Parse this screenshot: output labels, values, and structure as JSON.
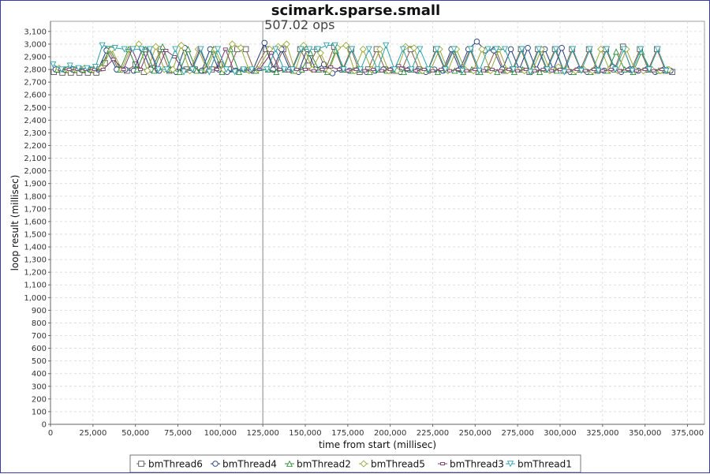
{
  "chart_data": {
    "type": "line",
    "title": "scimark.sparse.small",
    "annotation": "507.02 ops",
    "annotation_x": 125000,
    "xlabel": "time from start (millisec)",
    "ylabel": "loop result (millisec)",
    "xlim": [
      0,
      385000
    ],
    "ylim": [
      0,
      3180
    ],
    "x_ticks": [
      0,
      25000,
      50000,
      75000,
      100000,
      125000,
      150000,
      175000,
      200000,
      225000,
      250000,
      275000,
      300000,
      325000,
      350000,
      375000
    ],
    "x_tick_labels": [
      "0",
      "25,000",
      "50,000",
      "75,000",
      "100,000",
      "125,000",
      "150,000",
      "175,000",
      "200,000",
      "225,000",
      "250,000",
      "275,000",
      "300,000",
      "325,000",
      "350,000",
      "375,000"
    ],
    "y_ticks": [
      0,
      100,
      200,
      300,
      400,
      500,
      600,
      700,
      800,
      900,
      1000,
      1100,
      1200,
      1300,
      1400,
      1500,
      1600,
      1700,
      1800,
      1900,
      2000,
      2100,
      2200,
      2300,
      2400,
      2500,
      2600,
      2700,
      2800,
      2900,
      3000,
      3100
    ],
    "y_tick_labels": [
      "0",
      "100",
      "200",
      "300",
      "400",
      "500",
      "600",
      "700",
      "800",
      "900",
      "1,000",
      "1,100",
      "1,200",
      "1,300",
      "1,400",
      "1,500",
      "1,600",
      "1,700",
      "1,800",
      "1,900",
      "2,000",
      "2,100",
      "2,200",
      "2,300",
      "2,400",
      "2,500",
      "2,600",
      "2,700",
      "2,800",
      "2,900",
      "3,000",
      "3,100"
    ],
    "grid": true,
    "legend_position": "bottom",
    "series": [
      {
        "name": "bmThread6",
        "color": "#8b5a3c",
        "marker": "square",
        "x": [
          2000,
          7000,
          12000,
          17000,
          22000,
          27000,
          32000,
          34000,
          40000,
          45000,
          50000,
          55000,
          60000,
          65000,
          70000,
          75000,
          80000,
          85000,
          90000,
          95000,
          100000,
          105000,
          110000,
          115000,
          120000,
          127000,
          132000,
          137000,
          142000,
          147000,
          152000,
          157000,
          162000,
          167000,
          172000,
          177000,
          182000,
          187000,
          192000,
          197000,
          202000,
          207000,
          212000,
          217000,
          222000,
          227000,
          232000,
          237000,
          242000,
          247000,
          252000,
          257000,
          262000,
          267000,
          272000,
          277000,
          282000,
          287000,
          292000,
          297000,
          302000,
          307000,
          312000,
          317000,
          322000,
          327000,
          332000,
          337000,
          342000,
          347000,
          352000,
          357000,
          362000,
          366000
        ],
        "y": [
          2780,
          2775,
          2775,
          2775,
          2775,
          2775,
          2850,
          2960,
          2800,
          2790,
          2840,
          2780,
          2810,
          2960,
          2790,
          2780,
          2800,
          2800,
          2790,
          2800,
          2840,
          2800,
          2960,
          2960,
          2790,
          2960,
          2800,
          2960,
          2800,
          2960,
          2830,
          2960,
          2800,
          2980,
          2800,
          2960,
          2780,
          2800,
          2960,
          2800,
          2790,
          2800,
          2960,
          2800,
          2790,
          2960,
          2800,
          2960,
          2800,
          2960,
          2780,
          2800,
          2960,
          2790,
          2800,
          2960,
          2780,
          2960,
          2800,
          2960,
          2790,
          2960,
          2800,
          2960,
          2790,
          2960,
          2800,
          2980,
          2800,
          2960,
          2800,
          2960,
          2790,
          2780
        ]
      },
      {
        "name": "bmThread4",
        "color": "#1f3a7a",
        "marker": "circle",
        "x": [
          3000,
          8000,
          13000,
          18000,
          23000,
          28000,
          33000,
          39000,
          44000,
          49000,
          54000,
          59000,
          64000,
          69000,
          74000,
          79000,
          84000,
          89000,
          94000,
          99000,
          104000,
          109000,
          114000,
          119000,
          126000,
          131000,
          136000,
          141000,
          146000,
          151000,
          156000,
          161000,
          166000,
          171000,
          176000,
          181000,
          186000,
          191000,
          196000,
          201000,
          206000,
          211000,
          216000,
          221000,
          226000,
          231000,
          236000,
          241000,
          246000,
          251000,
          256000,
          261000,
          266000,
          271000,
          276000,
          281000,
          286000,
          291000,
          296000,
          301000,
          306000,
          311000,
          316000,
          321000,
          326000,
          331000,
          336000,
          341000,
          346000,
          351000,
          356000,
          361000,
          365000
        ],
        "y": [
          2800,
          2800,
          2800,
          2800,
          2800,
          2800,
          2950,
          2800,
          2800,
          2790,
          2960,
          2800,
          2790,
          2800,
          2780,
          2970,
          2800,
          2790,
          2960,
          2800,
          2780,
          2790,
          2800,
          2790,
          3010,
          2800,
          2960,
          2800,
          2780,
          2960,
          2800,
          2840,
          2770,
          2800,
          2790,
          2800,
          2780,
          2790,
          2800,
          2800,
          2780,
          2800,
          2790,
          2780,
          2800,
          2790,
          2960,
          2800,
          2960,
          3020,
          2950,
          2950,
          2800,
          2960,
          2800,
          2970,
          2800,
          2960,
          2800,
          2970,
          2780,
          2800,
          2780,
          2800,
          2790,
          2820,
          2780,
          2800,
          2790,
          2800,
          2780,
          2800,
          2790
        ]
      },
      {
        "name": "bmThread2",
        "color": "#2e8b3a",
        "marker": "triangle-up",
        "x": [
          4000,
          9000,
          14000,
          19000,
          24000,
          29000,
          35000,
          41000,
          46000,
          51000,
          56000,
          61000,
          66000,
          71000,
          76000,
          81000,
          86000,
          91000,
          96000,
          101000,
          106000,
          111000,
          116000,
          121000,
          128000,
          133000,
          138000,
          143000,
          148000,
          153000,
          158000,
          163000,
          168000,
          173000,
          178000,
          183000,
          188000,
          193000,
          198000,
          203000,
          208000,
          213000,
          218000,
          223000,
          228000,
          233000,
          238000,
          243000,
          248000,
          253000,
          258000,
          263000,
          268000,
          273000,
          278000,
          283000,
          288000,
          293000,
          298000,
          303000,
          308000,
          313000,
          318000,
          323000,
          328000,
          333000,
          338000,
          343000,
          348000,
          353000,
          358000,
          363000
        ],
        "y": [
          2800,
          2800,
          2800,
          2800,
          2800,
          2810,
          2960,
          2800,
          2960,
          2800,
          2960,
          2790,
          2980,
          2800,
          2780,
          2960,
          2790,
          2800,
          2960,
          2780,
          2960,
          2780,
          2800,
          2790,
          2800,
          2780,
          2800,
          2790,
          2800,
          2930,
          2800,
          2780,
          2950,
          2800,
          2790,
          2800,
          2780,
          2800,
          2790,
          2800,
          2780,
          2800,
          2790,
          2800,
          2780,
          2800,
          2790,
          2780,
          2800,
          2780,
          2800,
          2780,
          2800,
          2780,
          2800,
          2790,
          2780,
          2800,
          2790,
          2800,
          2780,
          2800,
          2780,
          2800,
          2790,
          2940,
          2800,
          2780,
          2940,
          2800,
          2790,
          2800
        ]
      },
      {
        "name": "bmThread5",
        "color": "#9aa83a",
        "marker": "diamond",
        "x": [
          5000,
          10000,
          15000,
          20000,
          25000,
          30000,
          36000,
          42000,
          47000,
          52000,
          57000,
          62000,
          67000,
          72000,
          77000,
          82000,
          87000,
          92000,
          97000,
          102000,
          107000,
          112000,
          117000,
          122000,
          129000,
          134000,
          139000,
          144000,
          149000,
          154000,
          159000,
          164000,
          169000,
          174000,
          179000,
          184000,
          189000,
          194000,
          199000,
          204000,
          209000,
          214000,
          219000,
          224000,
          229000,
          234000,
          239000,
          244000,
          249000,
          254000,
          259000,
          264000,
          269000,
          274000,
          279000,
          284000,
          289000,
          294000,
          299000,
          304000,
          309000,
          314000,
          319000,
          324000,
          329000,
          334000,
          339000,
          344000,
          349000,
          354000,
          359000,
          364000
        ],
        "y": [
          2810,
          2800,
          2800,
          2810,
          2800,
          2810,
          2960,
          2800,
          2960,
          3000,
          2790,
          2980,
          2800,
          2800,
          2990,
          2790,
          2960,
          2800,
          2960,
          2800,
          3000,
          2970,
          2790,
          2800,
          2960,
          2980,
          3000,
          2790,
          2990,
          2800,
          2930,
          2790,
          2970,
          2990,
          2790,
          2960,
          2800,
          2960,
          2790,
          2790,
          2980,
          2970,
          2790,
          2800,
          2960,
          2790,
          2960,
          2800,
          2790,
          2960,
          2790,
          2960,
          2790,
          2800,
          2790,
          2800,
          2960,
          2790,
          2820,
          2800,
          2790,
          2800,
          2790,
          2960,
          2800,
          2790,
          2960,
          2800,
          2790,
          2800,
          2790,
          2800
        ]
      },
      {
        "name": "bmThread3",
        "color": "#7a3a6e",
        "marker": "square-small",
        "x": [
          6000,
          11000,
          16000,
          21000,
          26000,
          31000,
          37000,
          43000,
          48000,
          53000,
          58000,
          63000,
          68000,
          73000,
          78000,
          83000,
          88000,
          93000,
          98000,
          103000,
          108000,
          113000,
          118000,
          123000,
          130000,
          135000,
          140000,
          145000,
          150000,
          155000,
          160000,
          165000,
          170000,
          175000,
          180000,
          185000,
          190000,
          195000,
          200000,
          205000,
          210000,
          215000,
          220000,
          225000,
          230000,
          235000,
          240000,
          245000,
          250000,
          255000,
          260000,
          265000,
          270000,
          275000,
          280000,
          285000,
          290000,
          295000,
          300000,
          305000,
          310000,
          315000,
          320000,
          325000,
          330000,
          335000,
          340000,
          345000,
          350000,
          355000,
          360000
        ],
        "y": [
          2800,
          2800,
          2800,
          2800,
          2800,
          2800,
          2880,
          2800,
          2960,
          2800,
          2960,
          2800,
          2950,
          2900,
          2800,
          2800,
          2960,
          2790,
          2800,
          2960,
          2790,
          2800,
          2790,
          2800,
          2930,
          2800,
          2790,
          2800,
          2800,
          2790,
          2800,
          2820,
          2800,
          2790,
          2800,
          2790,
          2800,
          2790,
          2800,
          2830,
          2800,
          2790,
          2800,
          2790,
          2800,
          2790,
          2800,
          2790,
          2800,
          2790,
          2800,
          2790,
          2800,
          2790,
          2800,
          2790,
          2800,
          2790,
          2800,
          2790,
          2800,
          2790,
          2800,
          2790,
          2800,
          2790,
          2800,
          2790,
          2800,
          2790,
          2800
        ]
      },
      {
        "name": "bmThread1",
        "color": "#2aa0a8",
        "marker": "triangle-down",
        "x": [
          1500,
          6500,
          11500,
          16500,
          21500,
          26500,
          30500,
          38000,
          43500,
          48500,
          53500,
          58500,
          63500,
          68500,
          73500,
          78500,
          83500,
          88500,
          93500,
          98500,
          103500,
          108500,
          113500,
          118500,
          127500,
          132500,
          137500,
          142500,
          147500,
          152500,
          157500,
          162500,
          167500,
          172500,
          177500,
          182500,
          187500,
          192500,
          197500,
          202500,
          207500,
          212500,
          217500,
          222500,
          227500,
          232500,
          237500,
          242500,
          247500,
          252500,
          257500,
          262500,
          267500,
          272500,
          277500,
          282500,
          287500,
          292500,
          297500,
          302500,
          307500,
          312500,
          317500,
          322500,
          327500,
          332500,
          337500,
          342500,
          347500,
          352500,
          357500,
          362500
        ],
        "y": [
          2840,
          2800,
          2830,
          2810,
          2810,
          2820,
          2990,
          2970,
          2960,
          2960,
          2960,
          2960,
          2800,
          2800,
          2960,
          2780,
          2800,
          2960,
          2780,
          2960,
          2800,
          2780,
          2800,
          2800,
          2800,
          2960,
          2800,
          2800,
          2960,
          2960,
          2960,
          2990,
          2990,
          2800,
          2960,
          2800,
          2960,
          2800,
          2990,
          2800,
          2960,
          2800,
          2960,
          2800,
          2960,
          2800,
          2960,
          2790,
          2960,
          2790,
          2960,
          2960,
          2960,
          2800,
          2960,
          2780,
          2960,
          2800,
          2960,
          2780,
          2960,
          2790,
          2960,
          2790,
          2960,
          2800,
          2960,
          2790,
          2960,
          2800,
          2960,
          2790
        ]
      }
    ]
  }
}
